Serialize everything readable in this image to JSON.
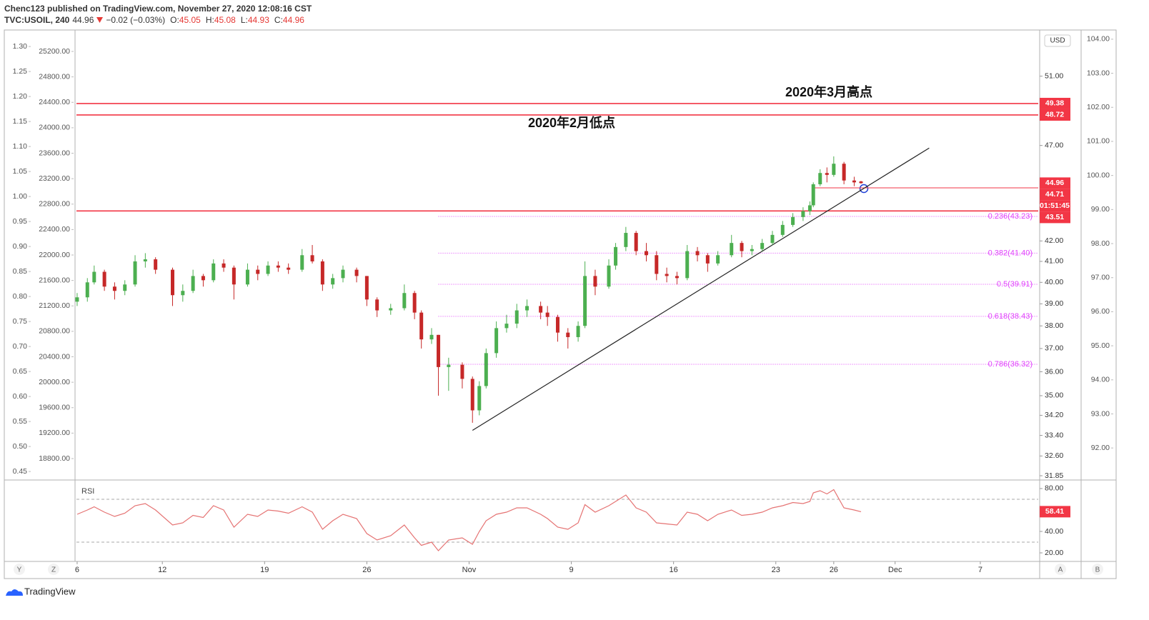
{
  "header": {
    "line1": "Chenc123 published on TradingView.com, November 27, 2020 12:08:16 CST",
    "symbol": "TVC:USOIL, 240",
    "last": 44.96,
    "change": "−0.02 (−0.03%)",
    "ohlc": [
      {
        "key": "O:",
        "value": 45.05
      },
      {
        "key": "H:",
        "value": 45.08
      },
      {
        "key": "L:",
        "value": 44.93
      },
      {
        "key": "C:",
        "value": 44.96
      }
    ]
  },
  "chart_data": {
    "type": "candlestick",
    "x": [
      0,
      3,
      5,
      8,
      11,
      14,
      17,
      20,
      23,
      28,
      31,
      34,
      37,
      40,
      43,
      46,
      50,
      53,
      56,
      59,
      62,
      66,
      69,
      72,
      75,
      78,
      82,
      85,
      88,
      92,
      96,
      99,
      101,
      104,
      106,
      109,
      113,
      116,
      118,
      120,
      123,
      126,
      129,
      132,
      136,
      138,
      141,
      144,
      147,
      149,
      152,
      156,
      158,
      161,
      164,
      167,
      170,
      173,
      176,
      179,
      182,
      185,
      188,
      192,
      195,
      198,
      201,
      204,
      207,
      210,
      213,
      215,
      216,
      218,
      220,
      222,
      225,
      228,
      230
    ],
    "open": [
      39.1,
      39.3,
      40.0,
      40.5,
      39.8,
      39.6,
      39.9,
      41.0,
      41.1,
      40.6,
      39.4,
      39.6,
      40.3,
      40.1,
      40.9,
      40.7,
      39.9,
      40.6,
      40.4,
      40.8,
      40.7,
      40.6,
      41.3,
      41.0,
      39.9,
      40.2,
      40.6,
      40.3,
      39.2,
      38.7,
      38.8,
      39.5,
      38.6,
      37.4,
      37.6,
      36.2,
      36.3,
      35.7,
      34.4,
      35.4,
      36.8,
      37.9,
      38.1,
      38.7,
      38.9,
      38.6,
      38.4,
      37.7,
      37.5,
      38.0,
      40.3,
      39.8,
      40.8,
      41.7,
      42.4,
      41.5,
      41.3,
      40.4,
      40.3,
      40.2,
      41.5,
      41.3,
      40.9,
      41.3,
      41.9,
      41.5,
      41.6,
      41.9,
      42.3,
      42.8,
      43.2,
      43.5,
      43.8,
      44.9,
      45.5,
      45.4,
      46.0,
      45.1,
      45.05
    ],
    "high": [
      39.5,
      40.2,
      40.8,
      40.6,
      40.0,
      40.1,
      41.3,
      41.4,
      41.2,
      40.7,
      39.9,
      40.6,
      40.4,
      41.1,
      41.1,
      40.8,
      40.9,
      40.8,
      41.0,
      41.0,
      40.9,
      41.6,
      41.8,
      41.1,
      40.4,
      40.8,
      40.7,
      40.3,
      39.3,
      39.0,
      39.9,
      39.6,
      38.7,
      37.9,
      37.6,
      36.6,
      36.4,
      35.8,
      35.6,
      37.0,
      38.2,
      38.5,
      39.0,
      39.2,
      39.1,
      38.9,
      38.5,
      37.9,
      38.2,
      41.0,
      40.6,
      41.1,
      41.9,
      42.7,
      42.5,
      41.9,
      41.5,
      40.7,
      40.5,
      41.8,
      41.7,
      41.4,
      41.5,
      42.3,
      42.0,
      41.8,
      42.1,
      42.5,
      43.0,
      43.4,
      43.7,
      44.0,
      45.0,
      45.7,
      45.8,
      46.4,
      46.1,
      45.3,
      45.08
    ],
    "low": [
      38.9,
      39.1,
      39.9,
      39.6,
      39.2,
      39.4,
      39.8,
      40.7,
      40.4,
      38.9,
      39.1,
      39.5,
      39.8,
      40.0,
      40.5,
      39.2,
      39.8,
      40.1,
      40.3,
      40.5,
      40.4,
      40.5,
      40.9,
      39.6,
      39.7,
      40.0,
      40.0,
      38.9,
      38.4,
      38.5,
      38.7,
      38.3,
      37.0,
      37.2,
      35.0,
      35.2,
      35.3,
      33.9,
      34.2,
      35.3,
      36.6,
      37.7,
      37.9,
      38.4,
      38.3,
      38.0,
      37.3,
      37.0,
      37.3,
      37.9,
      39.4,
      39.7,
      40.6,
      41.5,
      41.3,
      41.0,
      40.1,
      40.0,
      39.9,
      40.1,
      41.0,
      40.5,
      40.8,
      41.2,
      41.2,
      41.3,
      41.5,
      41.8,
      42.2,
      42.7,
      43.0,
      43.3,
      43.7,
      44.8,
      45.0,
      45.3,
      44.9,
      44.8,
      44.93
    ],
    "close": [
      39.3,
      40.0,
      40.5,
      39.8,
      39.6,
      39.9,
      41.0,
      41.1,
      40.6,
      39.4,
      39.6,
      40.3,
      40.1,
      40.9,
      40.7,
      39.9,
      40.6,
      40.4,
      40.8,
      40.7,
      40.6,
      41.3,
      41.0,
      39.9,
      40.2,
      40.6,
      40.3,
      39.2,
      38.7,
      38.8,
      39.5,
      38.6,
      37.4,
      37.6,
      36.2,
      36.3,
      35.7,
      34.4,
      35.4,
      36.8,
      37.9,
      38.1,
      38.7,
      38.9,
      38.6,
      38.4,
      37.7,
      37.5,
      38.0,
      40.3,
      39.8,
      40.8,
      41.7,
      42.4,
      41.5,
      41.3,
      40.4,
      40.3,
      40.2,
      41.5,
      41.3,
      40.9,
      41.3,
      41.9,
      41.5,
      41.6,
      41.9,
      42.3,
      42.8,
      43.2,
      43.5,
      43.8,
      44.9,
      45.5,
      45.4,
      46.0,
      45.1,
      45.0,
      44.96
    ],
    "up_color": "#4caf50",
    "down_color": "#c62828",
    "xlim": [
      -0.2,
      282
    ],
    "xticks": [
      {
        "value": 0,
        "label": "6"
      },
      {
        "value": 25,
        "label": "12"
      },
      {
        "value": 55,
        "label": "19"
      },
      {
        "value": 85,
        "label": "26"
      },
      {
        "value": 115,
        "label": "Nov"
      },
      {
        "value": 145,
        "label": "9"
      },
      {
        "value": 175,
        "label": "16"
      },
      {
        "value": 205,
        "label": "23"
      },
      {
        "value": 222,
        "label": "26"
      },
      {
        "value": 240,
        "label": "Dec"
      },
      {
        "value": 265,
        "label": "7"
      }
    ],
    "ylim": [
      31.69,
      53.85
    ],
    "log_scale": true,
    "currency": "USD",
    "yticks": [
      {
        "value": 51,
        "label": "51.00"
      },
      {
        "value": 47,
        "label": "47.00"
      },
      {
        "value": 42,
        "label": "42.00"
      },
      {
        "value": 41,
        "label": "41.00"
      },
      {
        "value": 40,
        "label": "40.00"
      },
      {
        "value": 39,
        "label": "39.00"
      },
      {
        "value": 38,
        "label": "38.00"
      },
      {
        "value": 37,
        "label": "37.00"
      },
      {
        "value": 36,
        "label": "36.00"
      },
      {
        "value": 35,
        "label": "35.00"
      },
      {
        "value": 34.2,
        "label": "34.20"
      },
      {
        "value": 33.4,
        "label": "33.40"
      },
      {
        "value": 32.6,
        "label": "32.60"
      },
      {
        "value": 31.85,
        "label": "31.85"
      }
    ],
    "levels": [
      {
        "value": 49.38,
        "line": "full"
      },
      {
        "value": 48.72,
        "line": "full"
      },
      {
        "value": 44.96,
        "countdown": "01:51:45"
      },
      {
        "value": 44.71,
        "line": "from",
        "from": 216
      },
      {
        "value": 43.51,
        "line": "full"
      }
    ],
    "level_color": "#f23645",
    "annotations": [
      "2020年3月高点",
      "2020年2月低点"
    ],
    "fib_from": 106,
    "fib_color": "#e040fb",
    "fib_levels": [
      {
        "value": 43.23,
        "label": "0.236(43.23)"
      },
      {
        "value": 41.4,
        "label": "0.382(41.40)"
      },
      {
        "value": 39.91,
        "label": "0.5(39.91)"
      },
      {
        "value": 38.43,
        "label": "0.618(38.43)"
      },
      {
        "value": 36.32,
        "label": "0.786(36.32)"
      }
    ],
    "trendline": {
      "x": [
        116,
        250
      ],
      "y": [
        33.6,
        46.86
      ]
    },
    "rsi": {
      "label": "RSI",
      "color": "#e57373",
      "ylim": [
        14,
        85.3
      ],
      "bands": [
        70,
        30
      ],
      "yticks": [
        {
          "value": 80,
          "label": "80.00"
        },
        {
          "value": 40,
          "label": "40.00"
        },
        {
          "value": 20,
          "label": "20.00"
        }
      ],
      "values": [
        56,
        60,
        63,
        58,
        54,
        57,
        64,
        66,
        60,
        46,
        48,
        55,
        53,
        64,
        60,
        44,
        56,
        54,
        60,
        59,
        57,
        63,
        58,
        42,
        50,
        56,
        52,
        38,
        32,
        36,
        46,
        34,
        27,
        30,
        22,
        32,
        34,
        28,
        40,
        50,
        56,
        58,
        62,
        62,
        56,
        52,
        44,
        42,
        48,
        65,
        58,
        64,
        68,
        74,
        62,
        58,
        48,
        47,
        46,
        58,
        56,
        50,
        56,
        60,
        55,
        56,
        58,
        62,
        64,
        67,
        66,
        68,
        76,
        78,
        75,
        79,
        62,
        60,
        58.41
      ]
    },
    "extra_axes": [
      {
        "ylim": [
          0.433,
          1.333
        ],
        "yticks": [
          {
            "value": 1.3,
            "label": "1.30"
          },
          {
            "value": 1.25,
            "label": "1.25"
          },
          {
            "value": 1.2,
            "label": "1.20"
          },
          {
            "value": 1.15,
            "label": "1.15"
          },
          {
            "value": 1.1,
            "label": "1.10"
          },
          {
            "value": 1.05,
            "label": "1.05"
          },
          {
            "value": 1.0,
            "label": "1.00"
          },
          {
            "value": 0.95,
            "label": "0.95"
          },
          {
            "value": 0.9,
            "label": "0.90"
          },
          {
            "value": 0.85,
            "label": "0.85"
          },
          {
            "value": 0.8,
            "label": "0.80"
          },
          {
            "value": 0.75,
            "label": "0.75"
          },
          {
            "value": 0.7,
            "label": "0.70"
          },
          {
            "value": 0.65,
            "label": "0.65"
          },
          {
            "value": 0.6,
            "label": "0.60"
          },
          {
            "value": 0.55,
            "label": "0.55"
          },
          {
            "value": 0.5,
            "label": "0.50"
          },
          {
            "value": 0.45,
            "label": "0.45"
          }
        ]
      },
      {
        "ylim": [
          18463,
          25537
        ],
        "yticks": [
          {
            "value": 25200,
            "label": "25200.00"
          },
          {
            "value": 24800,
            "label": "24800.00"
          },
          {
            "value": 24400,
            "label": "24400.00"
          },
          {
            "value": 24000,
            "label": "24000.00"
          },
          {
            "value": 23600,
            "label": "23600.00"
          },
          {
            "value": 23200,
            "label": "23200.00"
          },
          {
            "value": 22800,
            "label": "22800.00"
          },
          {
            "value": 22400,
            "label": "22400.00"
          },
          {
            "value": 22000,
            "label": "22000.00"
          },
          {
            "value": 21600,
            "label": "21600.00"
          },
          {
            "value": 21200,
            "label": "21200.00"
          },
          {
            "value": 20800,
            "label": "20800.00"
          },
          {
            "value": 20400,
            "label": "20400.00"
          },
          {
            "value": 20000,
            "label": "20000.00"
          },
          {
            "value": 19600,
            "label": "19600.00"
          },
          {
            "value": 19200,
            "label": "19200.00"
          },
          {
            "value": 18800,
            "label": "18800.00"
          }
        ]
      },
      {
        "ylim": [
          91.06,
          104.27
        ],
        "yticks": [
          {
            "value": 104,
            "label": "104.00"
          },
          {
            "value": 103,
            "label": "103.00"
          },
          {
            "value": 102,
            "label": "102.00"
          },
          {
            "value": 101,
            "label": "101.00"
          },
          {
            "value": 100,
            "label": "100.00"
          },
          {
            "value": 99,
            "label": "99.00"
          },
          {
            "value": 98,
            "label": "98.00"
          },
          {
            "value": 97,
            "label": "97.00"
          },
          {
            "value": 96,
            "label": "96.00"
          },
          {
            "value": 95,
            "label": "95.00"
          },
          {
            "value": 94,
            "label": "94.00"
          },
          {
            "value": 93,
            "label": "93.00"
          },
          {
            "value": 92,
            "label": "92.00"
          }
        ]
      }
    ]
  },
  "toolbar": {
    "buttons": [
      "Y",
      "Z",
      "A",
      "B"
    ],
    "brand": "TradingView"
  }
}
